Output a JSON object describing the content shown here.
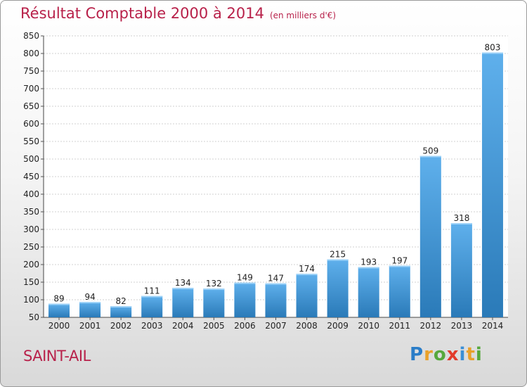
{
  "header": {
    "title": "Résultat Comptable 2000 à 2014",
    "subtitle": "(en milliers d'€)"
  },
  "footer": {
    "place": "SAINT-AIL",
    "logo": [
      "P",
      "r",
      "o",
      "x",
      "i",
      "t",
      "i"
    ]
  },
  "colors": {
    "title": "#b8214a",
    "bar_top": "#5fb0ec",
    "bar_bottom": "#2a7ab8"
  },
  "chart_data": {
    "type": "bar",
    "categories": [
      "2000",
      "2001",
      "2002",
      "2003",
      "2004",
      "2005",
      "2006",
      "2007",
      "2008",
      "2009",
      "2010",
      "2011",
      "2012",
      "2013",
      "2014"
    ],
    "values": [
      89,
      94,
      82,
      111,
      134,
      132,
      149,
      147,
      174,
      215,
      193,
      197,
      509,
      318,
      803
    ],
    "ylim": [
      50,
      850
    ],
    "yticks": [
      50,
      100,
      150,
      200,
      250,
      300,
      350,
      400,
      450,
      500,
      550,
      600,
      650,
      700,
      750,
      800,
      850
    ],
    "grid": true
  }
}
